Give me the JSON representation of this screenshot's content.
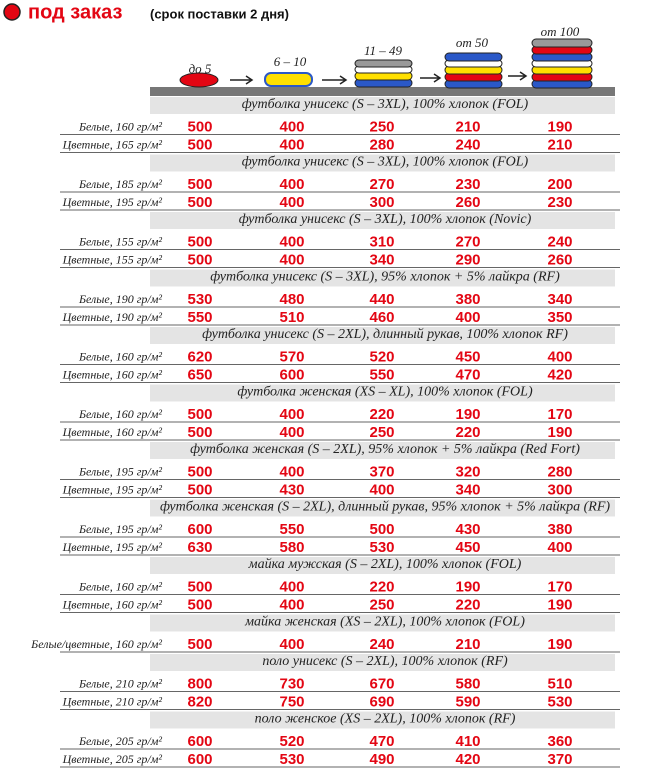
{
  "header": {
    "title": "под заказ",
    "subtitle": "(срок поставки 2 дня)"
  },
  "quantities": [
    "до 5",
    "6 – 10",
    "11 – 49",
    "от 50",
    "от 100"
  ],
  "sections": [
    {
      "title": "футболка унисекс (S – 3XL), 100% хлопок (FOL)",
      "rows": [
        {
          "label": "Белые, 160 гр/м²",
          "prices": [
            "500",
            "400",
            "250",
            "210",
            "190"
          ]
        },
        {
          "label": "Цветные, 165 гр/м²",
          "prices": [
            "500",
            "400",
            "280",
            "240",
            "210"
          ]
        }
      ]
    },
    {
      "title": "футболка унисекс (S – 3XL), 100% хлопок (FOL)",
      "rows": [
        {
          "label": "Белые, 185 гр/м²",
          "prices": [
            "500",
            "400",
            "270",
            "230",
            "200"
          ]
        },
        {
          "label": "Цветные, 195 гр/м²",
          "prices": [
            "500",
            "400",
            "300",
            "260",
            "230"
          ]
        }
      ]
    },
    {
      "title": "футболка унисекс (S – 3XL), 100% хлопок (Novic)",
      "rows": [
        {
          "label": "Белые, 155 гр/м²",
          "prices": [
            "500",
            "400",
            "310",
            "270",
            "240"
          ]
        },
        {
          "label": "Цветные, 155 гр/м²",
          "prices": [
            "500",
            "400",
            "340",
            "290",
            "260"
          ]
        }
      ]
    },
    {
      "title": "футболка унисекс (S – 3XL), 95% хлопок + 5% лайкра (RF)",
      "rows": [
        {
          "label": "Белые, 190 гр/м²",
          "prices": [
            "530",
            "480",
            "440",
            "380",
            "340"
          ]
        },
        {
          "label": "Цветные, 190 гр/м²",
          "prices": [
            "550",
            "510",
            "460",
            "400",
            "350"
          ]
        }
      ]
    },
    {
      "title": "футболка унисекс (S – 2XL), длинный рукав, 100% хлопок RF)",
      "rows": [
        {
          "label": "Белые, 160 гр/м²",
          "prices": [
            "620",
            "570",
            "520",
            "450",
            "400"
          ]
        },
        {
          "label": "Цветные, 160 гр/м²",
          "prices": [
            "650",
            "600",
            "550",
            "470",
            "420"
          ]
        }
      ]
    },
    {
      "title": "футболка женская (XS – XL), 100% хлопок (FOL)",
      "rows": [
        {
          "label": "Белые, 160 гр/м²",
          "prices": [
            "500",
            "400",
            "220",
            "190",
            "170"
          ]
        },
        {
          "label": "Цветные, 160 гр/м²",
          "prices": [
            "500",
            "400",
            "250",
            "220",
            "190"
          ]
        }
      ]
    },
    {
      "title": "футболка женская (S – 2XL), 95% хлопок + 5% лайкра (Red Fort)",
      "rows": [
        {
          "label": "Белые, 195 гр/м²",
          "prices": [
            "500",
            "400",
            "370",
            "320",
            "280"
          ]
        },
        {
          "label": "Цветные, 195 гр/м²",
          "prices": [
            "500",
            "430",
            "400",
            "340",
            "300"
          ]
        }
      ]
    },
    {
      "title": "футболка женская (S – 2XL), длинный рукав, 95% хлопок + 5% лайкра (RF)",
      "rows": [
        {
          "label": "Белые, 195 гр/м²",
          "prices": [
            "600",
            "550",
            "500",
            "430",
            "380"
          ]
        },
        {
          "label": "Цветные, 195 гр/м²",
          "prices": [
            "630",
            "580",
            "530",
            "450",
            "400"
          ]
        }
      ]
    },
    {
      "title": "майка мужская (S – 2XL), 100% хлопок (FOL)",
      "rows": [
        {
          "label": "Белые, 160 гр/м²",
          "prices": [
            "500",
            "400",
            "220",
            "190",
            "170"
          ]
        },
        {
          "label": "Цветные, 160 гр/м²",
          "prices": [
            "500",
            "400",
            "250",
            "220",
            "190"
          ]
        }
      ]
    },
    {
      "title": "майка женская (XS – 2XL), 100% хлопок (FOL)",
      "rows": [
        {
          "label": "Белые/цветные, 160 гр/м²",
          "prices": [
            "500",
            "400",
            "240",
            "210",
            "190"
          ]
        }
      ]
    },
    {
      "title": "поло унисекс (S – 2XL), 100% хлопок (RF)",
      "rows": [
        {
          "label": "Белые, 210 гр/м²",
          "prices": [
            "800",
            "730",
            "670",
            "580",
            "510"
          ]
        },
        {
          "label": "Цветные, 210 гр/м²",
          "prices": [
            "820",
            "750",
            "690",
            "590",
            "530"
          ]
        }
      ]
    },
    {
      "title": "поло женское (XS – 2XL), 100% хлопок (RF)",
      "rows": [
        {
          "label": "Белые, 205 гр/м²",
          "prices": [
            "600",
            "520",
            "470",
            "410",
            "360"
          ]
        },
        {
          "label": "Цветные, 205 гр/м²",
          "prices": [
            "600",
            "530",
            "490",
            "420",
            "370"
          ]
        }
      ]
    }
  ]
}
